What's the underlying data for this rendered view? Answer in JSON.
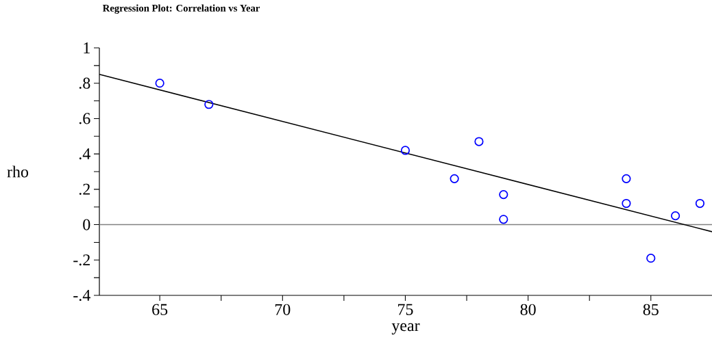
{
  "chart_data": {
    "type": "scatter",
    "title": "Regression Plot: Correlation vs Year",
    "xlabel": "year",
    "ylabel": "rho",
    "xlim": [
      62.54,
      87.49
    ],
    "ylim": [
      -0.4,
      1
    ],
    "xticks": [
      65,
      {
        "value": 67.5,
        "label": null
      },
      70,
      {
        "value": 72.5,
        "label": null
      },
      75,
      {
        "value": 77.5,
        "label": null
      },
      80,
      {
        "value": 82.5,
        "label": null
      },
      85
    ],
    "yticks": [
      {
        "value": -0.4,
        "label": "-.4"
      },
      {
        "value": -0.3,
        "label": null
      },
      {
        "value": -0.2,
        "label": "-.2"
      },
      {
        "value": -0.1,
        "label": null
      },
      0,
      {
        "value": 0.1,
        "label": null
      },
      {
        "value": 0.2,
        "label": ".2"
      },
      {
        "value": 0.3,
        "label": null
      },
      {
        "value": 0.4,
        "label": ".4"
      },
      {
        "value": 0.5,
        "label": null
      },
      {
        "value": 0.6,
        "label": ".6"
      },
      {
        "value": 0.7,
        "label": null
      },
      {
        "value": 0.8,
        "label": ".8"
      },
      {
        "value": 0.9,
        "label": null
      },
      1
    ],
    "grid": false,
    "ref_lines": [
      {
        "axis": "y",
        "value": 0,
        "color": "#808080"
      }
    ],
    "series": [
      {
        "marker": "circle",
        "color": "#0000ff",
        "x": [
          65,
          67,
          75,
          77,
          78,
          79,
          79,
          84,
          84,
          85,
          86,
          87
        ],
        "values": [
          0.8,
          0.68,
          0.42,
          0.26,
          0.47,
          0.17,
          0.03,
          0.26,
          0.12,
          -0.19,
          0.05,
          0.12
        ]
      },
      {
        "type": "line",
        "color": "#000000",
        "x": [
          62.54,
          87.49
        ],
        "values": [
          0.85,
          -0.04
        ]
      }
    ]
  }
}
